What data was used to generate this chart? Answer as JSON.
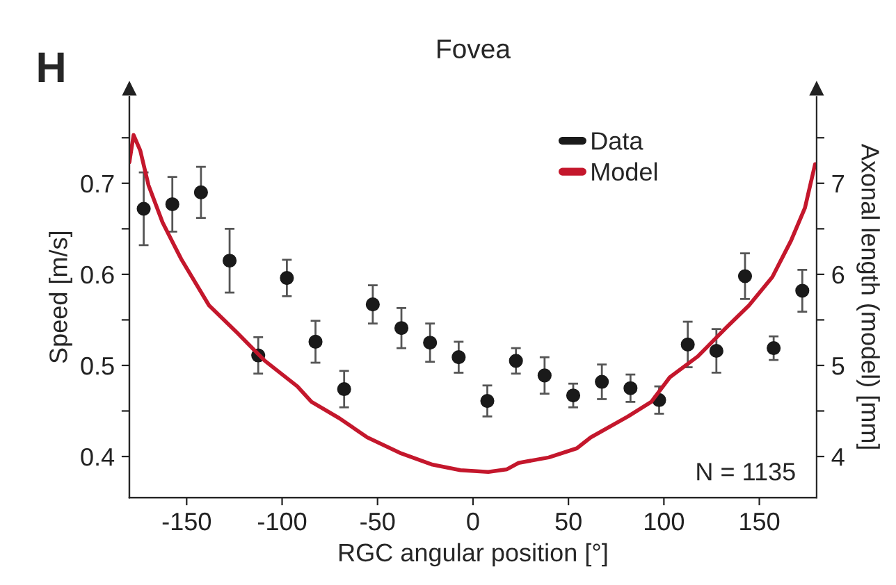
{
  "chart_data": {
    "type": "scatter",
    "title": "Fovea",
    "xlabel": "RGC angular position [°]",
    "ylabel": "Speed [m/s]",
    "y2label": "Axonal length (model) [mm]",
    "annotations": [
      "H",
      "N = 1135"
    ],
    "xlim": [
      -180,
      180
    ],
    "xticks": [
      -150,
      -100,
      -50,
      0,
      50,
      100,
      150
    ],
    "ylim": [
      0.355,
      0.795
    ],
    "yticks": [
      0.4,
      {
        "value": 0.45,
        "label": null
      },
      0.5,
      {
        "value": 0.55,
        "label": null
      },
      0.6,
      {
        "value": 0.65,
        "label": null
      },
      0.7,
      {
        "value": 0.75,
        "label": null
      }
    ],
    "y2lim": [
      3.55,
      7.95
    ],
    "y2ticks": [
      4,
      {
        "value": 4.5,
        "label": null
      },
      5,
      {
        "value": 5.5,
        "label": null
      },
      6,
      {
        "value": 6.5,
        "label": null
      },
      7,
      {
        "value": 7.5,
        "label": null
      }
    ],
    "grid": false,
    "legend": "top right",
    "series": [
      {
        "name": "Data",
        "color": "#1a1a1a",
        "marker": "circle",
        "axis": "y",
        "x": [
          -172.5,
          -157.5,
          -142.5,
          -127.5,
          -112.5,
          -97.5,
          -82.5,
          -67.5,
          -52.5,
          -37.5,
          -22.5,
          -7.5,
          7.5,
          22.5,
          37.5,
          52.5,
          67.5,
          82.5,
          97.5,
          112.5,
          127.5,
          142.5,
          157.5,
          172.5
        ],
        "values": [
          0.672,
          0.677,
          0.69,
          0.615,
          0.511,
          0.596,
          0.526,
          0.474,
          0.567,
          0.541,
          0.525,
          0.509,
          0.461,
          0.505,
          0.489,
          0.467,
          0.482,
          0.475,
          0.462,
          0.523,
          0.516,
          0.598,
          0.519,
          0.582
        ],
        "errors": [
          0.04,
          0.03,
          0.028,
          0.035,
          0.02,
          0.02,
          0.023,
          0.02,
          0.021,
          0.022,
          0.021,
          0.017,
          0.017,
          0.014,
          0.02,
          0.013,
          0.019,
          0.015,
          0.015,
          0.025,
          0.024,
          0.025,
          0.013,
          0.023
        ]
      },
      {
        "name": "Model",
        "type": "line",
        "color": "#c4172c",
        "line_style": "solid",
        "axis": "y2",
        "x": [
          -180,
          -177.8,
          -174.3,
          -170,
          -162.6,
          -152.9,
          -138.3,
          -123.6,
          -109,
          -92,
          -84.6,
          -70,
          -55.4,
          -38.3,
          -21.2,
          -6.6,
          8,
          17.8,
          23.9,
          39.7,
          54.4,
          61.7,
          81.2,
          93.4,
          103.1,
          117.8,
          132.4,
          144.6,
          156.8,
          166.6,
          173.9,
          179.2
        ],
        "values": [
          7.23,
          7.53,
          7.36,
          6.98,
          6.57,
          6.17,
          5.66,
          5.36,
          5.05,
          4.77,
          4.6,
          4.42,
          4.21,
          4.04,
          3.91,
          3.85,
          3.83,
          3.86,
          3.93,
          3.99,
          4.09,
          4.21,
          4.44,
          4.6,
          4.87,
          5.1,
          5.41,
          5.66,
          5.97,
          6.37,
          6.73,
          7.21
        ]
      }
    ]
  }
}
